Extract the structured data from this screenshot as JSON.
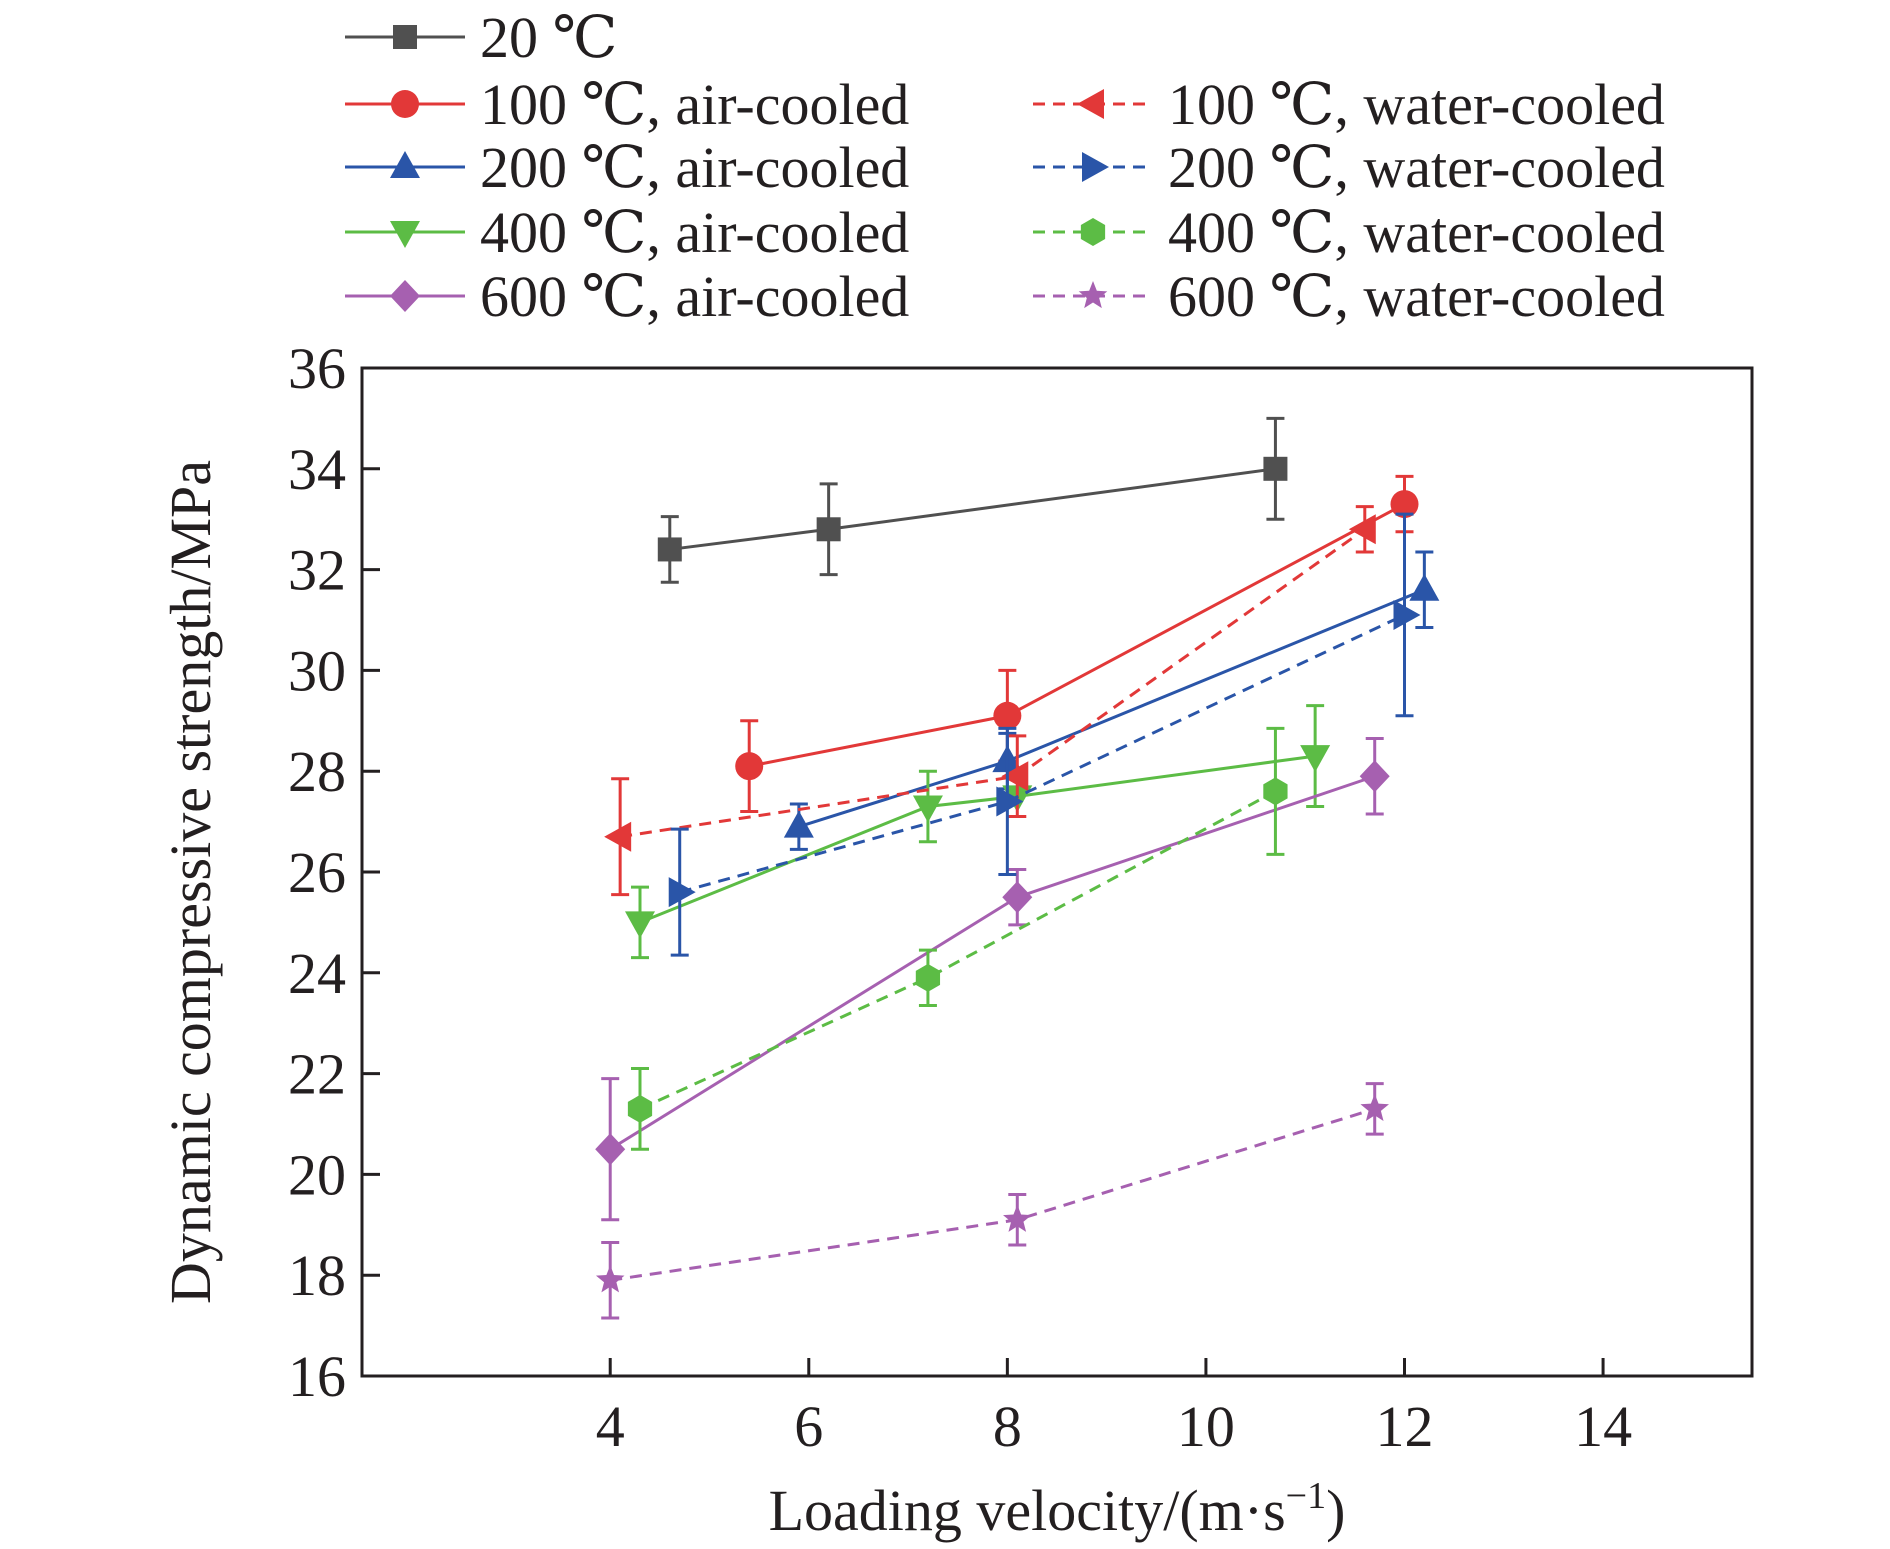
{
  "chart_data": {
    "type": "line",
    "title": "",
    "xlabel": "Loading velocity/(m·s",
    "xlabel_sup": "−1",
    "xlabel_close": ")",
    "ylabel": "Dynamic compressive strength/MPa",
    "xlim": [
      1.5,
      15.5
    ],
    "ylim": [
      16,
      36
    ],
    "xticks": [
      4,
      6,
      8,
      10,
      12,
      14
    ],
    "yticks": [
      16,
      18,
      20,
      22,
      24,
      26,
      28,
      30,
      32,
      34,
      36
    ],
    "grid": false,
    "legend_position": "top, above plot",
    "series": [
      {
        "name": "20 ℃",
        "color": "#505050",
        "marker": "square",
        "dashed": false,
        "x": [
          4.6,
          6.2,
          10.7
        ],
        "y": [
          32.4,
          32.8,
          34.0
        ],
        "err": [
          0.65,
          0.9,
          1.0
        ]
      },
      {
        "name": "100 ℃, air-cooled",
        "color": "#e23838",
        "marker": "circle",
        "dashed": false,
        "x": [
          5.4,
          8.0,
          12.0
        ],
        "y": [
          28.1,
          29.1,
          33.3
        ],
        "err": [
          0.9,
          0.9,
          0.55
        ]
      },
      {
        "name": "200 ℃, air-cooled",
        "color": "#2a55a8",
        "marker": "triangle-up",
        "dashed": false,
        "x": [
          5.9,
          8.0,
          12.2
        ],
        "y": [
          26.9,
          28.2,
          31.6
        ],
        "err": [
          0.45,
          0.55,
          0.75
        ]
      },
      {
        "name": "400 ℃, air-cooled",
        "color": "#5cbc45",
        "marker": "triangle-down",
        "dashed": false,
        "x": [
          4.3,
          7.2,
          8.1,
          11.1
        ],
        "y": [
          25.0,
          27.3,
          27.5,
          28.3
        ],
        "err": [
          0.7,
          0.7,
          0.0,
          1.0
        ]
      },
      {
        "name": "600 ℃, air-cooled",
        "color": "#a660b0",
        "marker": "diamond",
        "dashed": false,
        "x": [
          4.0,
          8.1,
          11.7
        ],
        "y": [
          20.5,
          25.5,
          27.9
        ],
        "err": [
          1.4,
          0.55,
          0.75
        ]
      },
      {
        "name": "100 ℃, water-cooled",
        "color": "#e23838",
        "marker": "triangle-left",
        "dashed": true,
        "x": [
          4.1,
          8.1,
          11.6
        ],
        "y": [
          26.7,
          27.9,
          32.8
        ],
        "err": [
          1.15,
          0.8,
          0.45
        ]
      },
      {
        "name": "200 ℃, water-cooled",
        "color": "#2a55a8",
        "marker": "triangle-right",
        "dashed": true,
        "x": [
          4.7,
          8.0,
          12.0
        ],
        "y": [
          25.6,
          27.4,
          31.1
        ],
        "err": [
          1.25,
          1.45,
          2.0
        ]
      },
      {
        "name": "400 ℃, water-cooled",
        "color": "#5cbc45",
        "marker": "hexagon",
        "dashed": true,
        "x": [
          4.3,
          7.2,
          10.7
        ],
        "y": [
          21.3,
          23.9,
          27.6
        ],
        "err": [
          0.8,
          0.55,
          1.25
        ]
      },
      {
        "name": "600 ℃, water-cooled",
        "color": "#a660b0",
        "marker": "star",
        "dashed": true,
        "x": [
          4.0,
          8.1,
          11.7
        ],
        "y": [
          17.9,
          19.1,
          21.3
        ],
        "err": [
          0.75,
          0.5,
          0.5
        ]
      }
    ]
  }
}
